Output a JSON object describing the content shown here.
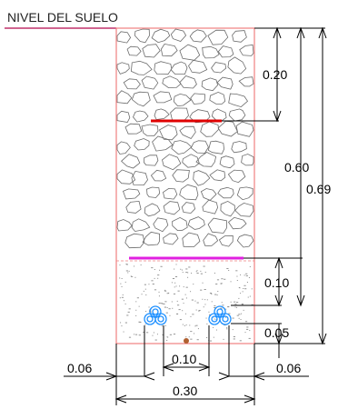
{
  "title": "NIVEL DEL SUELO",
  "dimensions": {
    "top_layer": "0.20",
    "mid": "0.60",
    "total": "0.69",
    "sand_layer": "0.10",
    "bottom_gap": "0.05",
    "left_offset": "0.06",
    "right_offset": "0.06",
    "conduit_spacing": "0.10",
    "width": "0.30"
  },
  "colors": {
    "outline": "#f08080",
    "title_underline": "#c0306a",
    "red_tape": "#e00000",
    "magenta_tape": "#e020e0",
    "conduit": "#1e90ff",
    "dimension": "#000000",
    "rock": "#6b6b6b",
    "sand_dots": "#888888",
    "marker": "#b06030"
  }
}
